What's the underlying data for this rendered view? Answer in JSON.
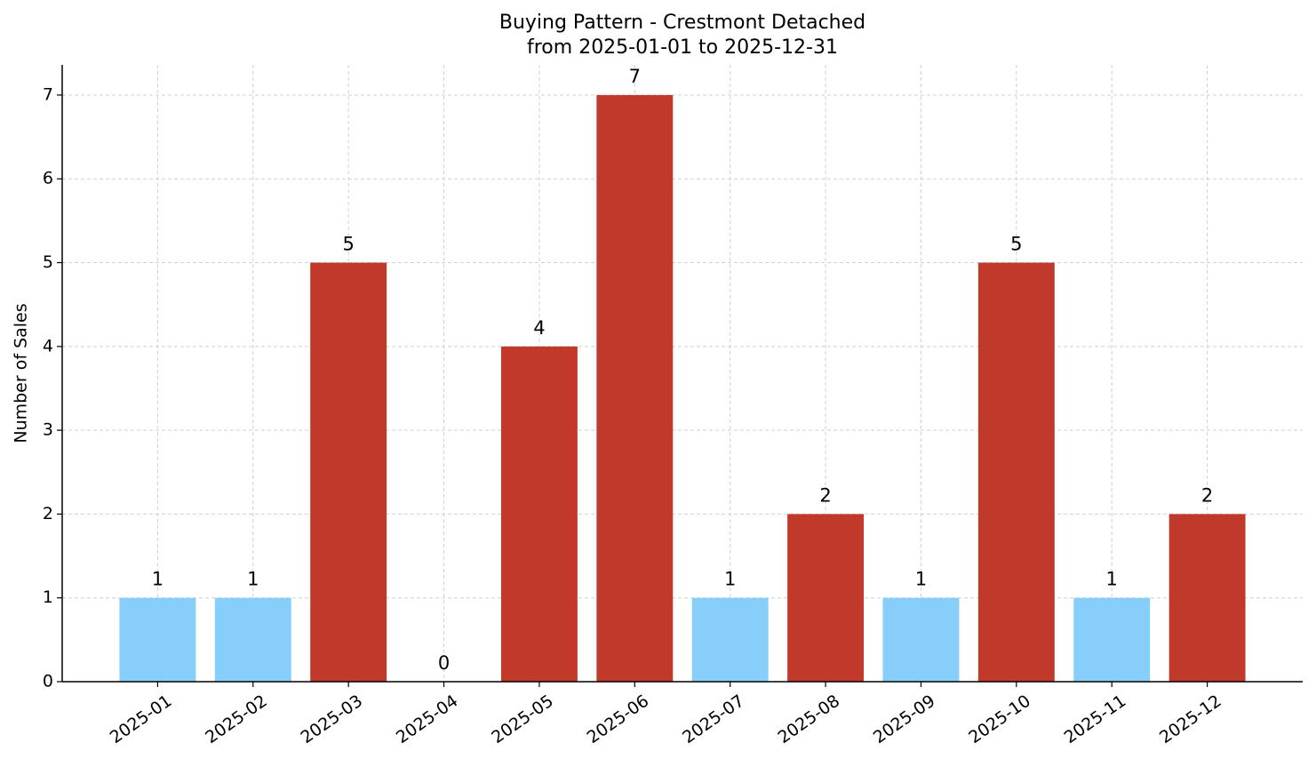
{
  "chart_data": {
    "type": "bar",
    "title": "Buying Pattern - Crestmont Detached",
    "subtitle": "from 2025-01-01 to 2025-12-31",
    "y_label": "Number of Sales",
    "categories": [
      "2025-01",
      "2025-02",
      "2025-03",
      "2025-04",
      "2025-05",
      "2025-06",
      "2025-07",
      "2025-08",
      "2025-09",
      "2025-10",
      "2025-11",
      "2025-12"
    ],
    "values": [
      1,
      1,
      5,
      0,
      4,
      7,
      1,
      2,
      1,
      5,
      1,
      2
    ],
    "colors": [
      "#87cefa",
      "#87cefa",
      "#c0392b",
      "#87cefa",
      "#c0392b",
      "#c0392b",
      "#87cefa",
      "#c0392b",
      "#87cefa",
      "#c0392b",
      "#87cefa",
      "#c0392b"
    ],
    "ylim": [
      0,
      7.36
    ],
    "yticks": [
      0,
      1,
      2,
      3,
      4,
      5,
      6,
      7
    ],
    "grid": true
  }
}
